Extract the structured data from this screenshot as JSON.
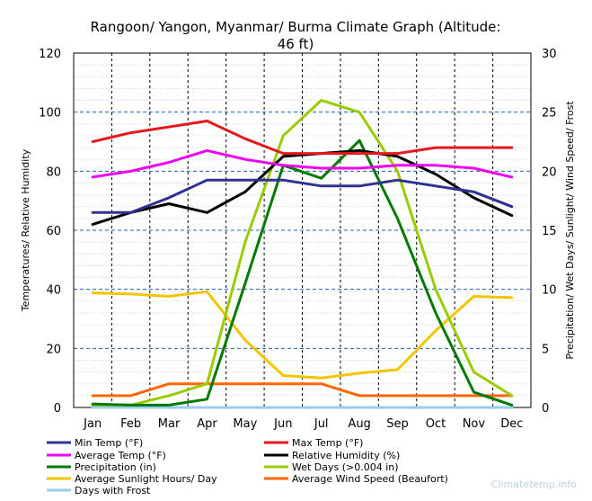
{
  "chart_data": {
    "type": "line",
    "title_line1": "Rangoon/ Yangon, Myanmar/ Burma Climate Graph (Altitude:",
    "title_line2": "46 ft)",
    "ylabel_left": "Temperatures/ Relative Humidity",
    "ylabel_right": "Precipitation/ Wet Days/ Sunlight/ Wind Speed/ Frost",
    "categories": [
      "Jan",
      "Feb",
      "Mar",
      "Apr",
      "May",
      "Jun",
      "Jul",
      "Aug",
      "Sep",
      "Oct",
      "Nov",
      "Dec"
    ],
    "ylim_left": [
      0,
      120
    ],
    "ylim_right": [
      0,
      30
    ],
    "yticks_left": [
      "0",
      "20",
      "40",
      "60",
      "80",
      "100",
      "120"
    ],
    "yticks_right": [
      "0",
      "5",
      "10",
      "15",
      "20",
      "25",
      "30"
    ],
    "series": [
      {
        "name": "Min Temp (°F)",
        "axis": "left",
        "color": "#2e3192",
        "values": [
          66,
          66,
          71,
          77,
          77,
          77,
          75,
          75,
          77,
          75,
          73,
          68
        ]
      },
      {
        "name": "Max Temp (°F)",
        "axis": "left",
        "color": "#e31a1c",
        "values": [
          90,
          93,
          95,
          97,
          91,
          86,
          86,
          86,
          86,
          88,
          88,
          88
        ]
      },
      {
        "name": "Average Temp (°F)",
        "axis": "left",
        "color": "#ee00ee",
        "values": [
          78,
          80,
          83,
          87,
          84,
          82,
          81,
          81,
          82,
          82,
          81,
          78
        ]
      },
      {
        "name": "Relative Humidity (%)",
        "axis": "left",
        "color": "#000000",
        "values": [
          62,
          66,
          69,
          66,
          73,
          85,
          86,
          87,
          85,
          79,
          71,
          65
        ]
      },
      {
        "name": "Precipitation (in)",
        "axis": "right",
        "color": "#007a00",
        "values": [
          0.3,
          0.2,
          0.2,
          0.7,
          10.5,
          20.5,
          19.4,
          22.6,
          16.0,
          8.0,
          1.3,
          0.2
        ]
      },
      {
        "name": "Wet Days (>0.004 in)",
        "axis": "right",
        "color": "#99cc00",
        "values": [
          0.2,
          0.2,
          1.0,
          2.0,
          14.0,
          23.0,
          26.0,
          25.0,
          20.0,
          10.0,
          3.0,
          1.0
        ]
      },
      {
        "name": "Average Sunlight Hours/ Day",
        "axis": "right",
        "color": "#f5c400",
        "values": [
          9.7,
          9.6,
          9.4,
          9.8,
          5.7,
          2.7,
          2.5,
          2.9,
          3.2,
          6.5,
          9.4,
          9.3
        ]
      },
      {
        "name": "Average Wind Speed (Beaufort)",
        "axis": "right",
        "color": "#ff6600",
        "values": [
          1,
          1,
          2,
          2,
          2,
          2,
          2,
          1,
          1,
          1,
          1,
          1
        ]
      },
      {
        "name": "Days with Frost",
        "axis": "right",
        "color": "#99ccee",
        "values": [
          0,
          0,
          0,
          0,
          0,
          0,
          0,
          0,
          0,
          0,
          0,
          0
        ]
      }
    ],
    "grid": true,
    "legend_position": "bottom"
  },
  "watermark": "Climatetemp.info"
}
